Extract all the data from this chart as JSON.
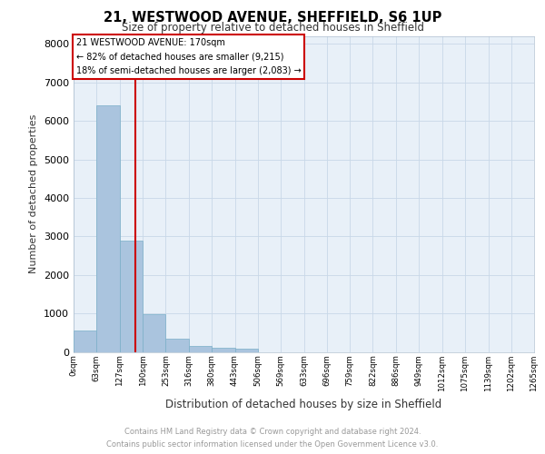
{
  "title_line1": "21, WESTWOOD AVENUE, SHEFFIELD, S6 1UP",
  "title_line2": "Size of property relative to detached houses in Sheffield",
  "xlabel": "Distribution of detached houses by size in Sheffield",
  "ylabel": "Number of detached properties",
  "property_label": "21 WESTWOOD AVENUE: 170sqm",
  "annotation_line2": "← 82% of detached houses are smaller (9,215)",
  "annotation_line3": "18% of semi-detached houses are larger (2,083) →",
  "bar_edges": [
    0,
    63,
    127,
    190,
    253,
    316,
    380,
    443,
    506,
    569,
    633,
    696,
    759,
    822,
    886,
    949,
    1012,
    1075,
    1139,
    1202,
    1265
  ],
  "bar_values": [
    550,
    6400,
    2900,
    970,
    350,
    155,
    100,
    90,
    0,
    0,
    0,
    0,
    0,
    0,
    0,
    0,
    0,
    0,
    0,
    0
  ],
  "bar_color": "#aac4de",
  "bar_edgecolor": "#7aafc8",
  "vline_x": 170,
  "vline_color": "#cc0000",
  "ylim": [
    0,
    8200
  ],
  "yticks": [
    0,
    1000,
    2000,
    3000,
    4000,
    5000,
    6000,
    7000,
    8000
  ],
  "grid_color": "#c8d8e8",
  "bg_color": "#e8f0f8",
  "footnote_line1": "Contains HM Land Registry data © Crown copyright and database right 2024.",
  "footnote_line2": "Contains public sector information licensed under the Open Government Licence v3.0.",
  "tick_labels": [
    "0sqm",
    "63sqm",
    "127sqm",
    "190sqm",
    "253sqm",
    "316sqm",
    "380sqm",
    "443sqm",
    "506sqm",
    "569sqm",
    "633sqm",
    "696sqm",
    "759sqm",
    "822sqm",
    "886sqm",
    "949sqm",
    "1012sqm",
    "1075sqm",
    "1139sqm",
    "1202sqm",
    "1265sqm"
  ]
}
